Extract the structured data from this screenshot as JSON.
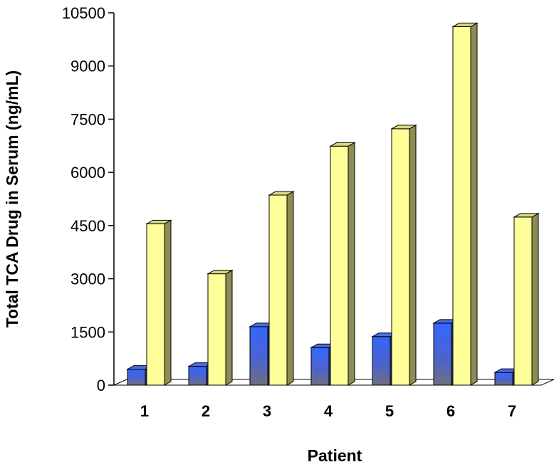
{
  "chart_data": {
    "type": "bar",
    "title": "",
    "xlabel": "Patient",
    "ylabel": "Total TCA Drug in Serum (ng/mL)",
    "categories": [
      "1",
      "2",
      "3",
      "4",
      "5",
      "6",
      "7"
    ],
    "ylim": [
      0,
      10500
    ],
    "yticks": [
      0,
      1500,
      3000,
      4500,
      6000,
      7500,
      9000,
      10500
    ],
    "grid": false,
    "legend": "none",
    "series": [
      {
        "values": [
          450,
          530,
          1650,
          1060,
          1370,
          1750,
          360
        ],
        "color": "#2f5fe8"
      },
      {
        "values": [
          4550,
          3140,
          5360,
          6740,
          7230,
          10110,
          4740
        ],
        "color": "#ffff99"
      }
    ]
  }
}
